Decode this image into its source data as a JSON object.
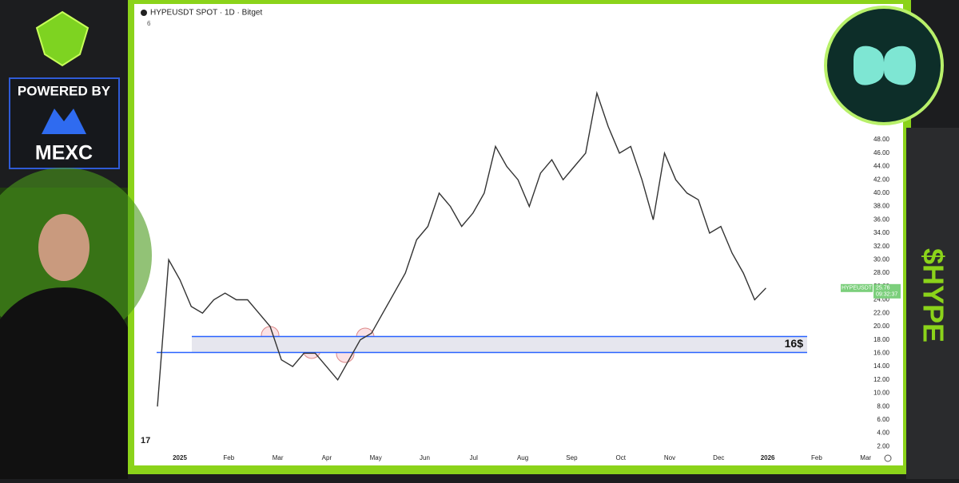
{
  "branding": {
    "powered_by": "POWERED BY",
    "exchange": "MEXC",
    "ticker": "$HYPE"
  },
  "chart_data": {
    "type": "line",
    "title": "HYPEUSDT SPOT · 1D · Bitget",
    "indicator_count": "6",
    "countdown": "09:32:37",
    "series": [
      {
        "name": "HYPEUSDT",
        "color": "#333333",
        "values": [
          8,
          30,
          27,
          23,
          22,
          24,
          25,
          24,
          24,
          22,
          20,
          15,
          14,
          16,
          16,
          14,
          12,
          15,
          18,
          19,
          22,
          25,
          28,
          33,
          35,
          40,
          38,
          35,
          37,
          40,
          47,
          44,
          42,
          38,
          43,
          45,
          42,
          44,
          46,
          55,
          50,
          46,
          47,
          42,
          36,
          46,
          42,
          40,
          39,
          34,
          35,
          31,
          28,
          24,
          25.76
        ]
      }
    ],
    "xticks": [
      "2025",
      "Feb",
      "Mar",
      "Apr",
      "May",
      "Jun",
      "Jul",
      "Aug",
      "Sep",
      "Oct",
      "Nov",
      "Dec",
      "2026",
      "Feb",
      "Mar"
    ],
    "ylim": [
      0,
      68
    ],
    "yticks": [
      {
        "value": 2,
        "label": "2.00"
      },
      {
        "value": 4,
        "label": "4.00"
      },
      {
        "value": 6,
        "label": "6.00"
      },
      {
        "value": 8,
        "label": "8.00"
      },
      {
        "value": 10,
        "label": "10.00"
      },
      {
        "value": 12,
        "label": "12.00"
      },
      {
        "value": 14,
        "label": "14.00"
      },
      {
        "value": 16,
        "label": "16.00"
      },
      {
        "value": 18,
        "label": "18.00"
      },
      {
        "value": 20,
        "label": "20.00"
      },
      {
        "value": 22,
        "label": "22.00"
      },
      {
        "value": 24,
        "label": "24.00"
      },
      {
        "value": 26,
        "label": "26.00"
      },
      {
        "value": 28,
        "label": "28.00"
      },
      {
        "value": 30,
        "label": "30.00"
      },
      {
        "value": 32,
        "label": "32.00"
      },
      {
        "value": 34,
        "label": "34.00"
      },
      {
        "value": 36,
        "label": "36.00"
      },
      {
        "value": 38,
        "label": "38.00"
      },
      {
        "value": 40,
        "label": "40.00"
      },
      {
        "value": 42,
        "label": "42.00"
      },
      {
        "value": 44,
        "label": "44.00"
      },
      {
        "value": 46,
        "label": "46.00"
      },
      {
        "value": 48,
        "label": "48.00"
      }
    ],
    "grid": false,
    "zone": [
      16.1,
      18.5
    ],
    "zone_color": "#2962ff",
    "zone_label": "16$"
  }
}
